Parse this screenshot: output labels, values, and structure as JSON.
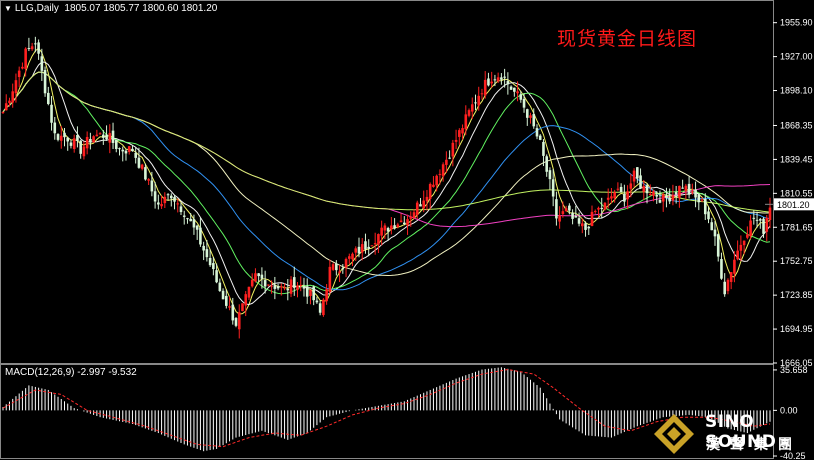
{
  "header": {
    "symbol": "LLG,Daily",
    "ohlc": "1805.07 1805.77 1800.60 1801.20"
  },
  "title": "现货黄金日线图",
  "macd": {
    "label": "MACD(12,26,9) -2.997 -9.532"
  },
  "logo": {
    "line1": "SINO SOUND",
    "line2": "漢聲集團"
  },
  "chart_data": {
    "type": "candlestick",
    "price_axis": {
      "ylim": [
        1666.05,
        1965.0
      ],
      "ticks": [
        "1955.90",
        "1927.00",
        "1898.10",
        "1868.35",
        "1839.45",
        "1810.55",
        "1781.65",
        "1752.75",
        "1723.85",
        "1694.95",
        "1666.05"
      ],
      "current": "1801.20"
    },
    "macd_axis": {
      "ylim": [
        -42,
        40
      ],
      "ticks": [
        "35.658",
        "0.00",
        "-40.25"
      ]
    },
    "price_path": [
      [
        0,
        1880
      ],
      [
        3,
        1900
      ],
      [
        7,
        1930
      ],
      [
        10,
        1940
      ],
      [
        13,
        1900
      ],
      [
        16,
        1860
      ],
      [
        20,
        1858
      ],
      [
        24,
        1848
      ],
      [
        28,
        1860
      ],
      [
        32,
        1860
      ],
      [
        36,
        1848
      ],
      [
        40,
        1848
      ],
      [
        44,
        1825
      ],
      [
        48,
        1800
      ],
      [
        52,
        1810
      ],
      [
        56,
        1795
      ],
      [
        60,
        1775
      ],
      [
        64,
        1750
      ],
      [
        67,
        1728
      ],
      [
        70,
        1712
      ],
      [
        72,
        1700
      ],
      [
        75,
        1720
      ],
      [
        78,
        1740
      ],
      [
        81,
        1736
      ],
      [
        84,
        1732
      ],
      [
        87,
        1728
      ],
      [
        90,
        1735
      ],
      [
        93,
        1730
      ],
      [
        96,
        1720
      ],
      [
        98,
        1708
      ],
      [
        101,
        1745
      ],
      [
        105,
        1750
      ],
      [
        109,
        1760
      ],
      [
        113,
        1768
      ],
      [
        117,
        1778
      ],
      [
        121,
        1785
      ],
      [
        125,
        1790
      ],
      [
        129,
        1803
      ],
      [
        133,
        1822
      ],
      [
        137,
        1840
      ],
      [
        141,
        1862
      ],
      [
        145,
        1885
      ],
      [
        148,
        1900
      ],
      [
        151,
        1910
      ],
      [
        154,
        1912
      ],
      [
        157,
        1900
      ],
      [
        160,
        1890
      ],
      [
        163,
        1873
      ],
      [
        166,
        1852
      ],
      [
        169,
        1818
      ],
      [
        171,
        1790
      ],
      [
        174,
        1795
      ],
      [
        177,
        1785
      ],
      [
        180,
        1780
      ],
      [
        183,
        1795
      ],
      [
        186,
        1800
      ],
      [
        189,
        1812
      ],
      [
        192,
        1808
      ],
      [
        195,
        1825
      ],
      [
        198,
        1815
      ],
      [
        201,
        1812
      ],
      [
        204,
        1805
      ],
      [
        207,
        1810
      ],
      [
        210,
        1818
      ],
      [
        213,
        1808
      ],
      [
        216,
        1802
      ],
      [
        218,
        1790
      ],
      [
        220,
        1770
      ],
      [
        223,
        1728
      ],
      [
        226,
        1755
      ],
      [
        229,
        1775
      ],
      [
        232,
        1790
      ],
      [
        235,
        1780
      ],
      [
        237,
        1801.2
      ]
    ],
    "macd_hist_path": [
      [
        0,
        3
      ],
      [
        8,
        22
      ],
      [
        14,
        18
      ],
      [
        22,
        2
      ],
      [
        30,
        -6
      ],
      [
        40,
        -12
      ],
      [
        48,
        -20
      ],
      [
        56,
        -30
      ],
      [
        62,
        -36
      ],
      [
        66,
        -34
      ],
      [
        72,
        -24
      ],
      [
        80,
        -18
      ],
      [
        88,
        -26
      ],
      [
        94,
        -20
      ],
      [
        100,
        -6
      ],
      [
        108,
        0
      ],
      [
        116,
        4
      ],
      [
        124,
        8
      ],
      [
        132,
        18
      ],
      [
        140,
        28
      ],
      [
        148,
        36
      ],
      [
        154,
        38
      ],
      [
        160,
        34
      ],
      [
        166,
        20
      ],
      [
        172,
        -8
      ],
      [
        180,
        -22
      ],
      [
        188,
        -24
      ],
      [
        196,
        -14
      ],
      [
        204,
        -6
      ],
      [
        212,
        -4
      ],
      [
        218,
        -6
      ],
      [
        224,
        -16
      ],
      [
        230,
        -20
      ],
      [
        237,
        -10
      ]
    ],
    "macd_signal_path": [
      [
        0,
        2
      ],
      [
        10,
        18
      ],
      [
        18,
        14
      ],
      [
        26,
        0
      ],
      [
        34,
        -6
      ],
      [
        44,
        -14
      ],
      [
        52,
        -22
      ],
      [
        60,
        -30
      ],
      [
        68,
        -32
      ],
      [
        76,
        -24
      ],
      [
        84,
        -20
      ],
      [
        92,
        -22
      ],
      [
        100,
        -14
      ],
      [
        108,
        -4
      ],
      [
        116,
        2
      ],
      [
        124,
        6
      ],
      [
        132,
        14
      ],
      [
        140,
        24
      ],
      [
        148,
        32
      ],
      [
        156,
        36
      ],
      [
        164,
        32
      ],
      [
        170,
        20
      ],
      [
        178,
        2
      ],
      [
        186,
        -14
      ],
      [
        194,
        -18
      ],
      [
        202,
        -10
      ],
      [
        210,
        -6
      ],
      [
        218,
        -6
      ],
      [
        226,
        -10
      ],
      [
        232,
        -14
      ],
      [
        237,
        -12
      ]
    ],
    "moving_averages": [
      {
        "color": "#ffff66",
        "period": 5
      },
      {
        "color": "#ffffff",
        "period": 10
      },
      {
        "color": "#66ff66",
        "period": 20
      },
      {
        "color": "#3399ff",
        "period": 40
      },
      {
        "color": "#ffffcc",
        "period": 60
      },
      {
        "color": "#ff44cc",
        "period": 120
      },
      {
        "color": "#ccff66",
        "period": 200
      }
    ],
    "colors": {
      "bull": "#ff2020",
      "bear": "#d8f5d8",
      "macd_hist": "#ffffff",
      "macd_signal": "#ff2a2a",
      "grid": "#333333",
      "axis": "#ffffff"
    }
  }
}
